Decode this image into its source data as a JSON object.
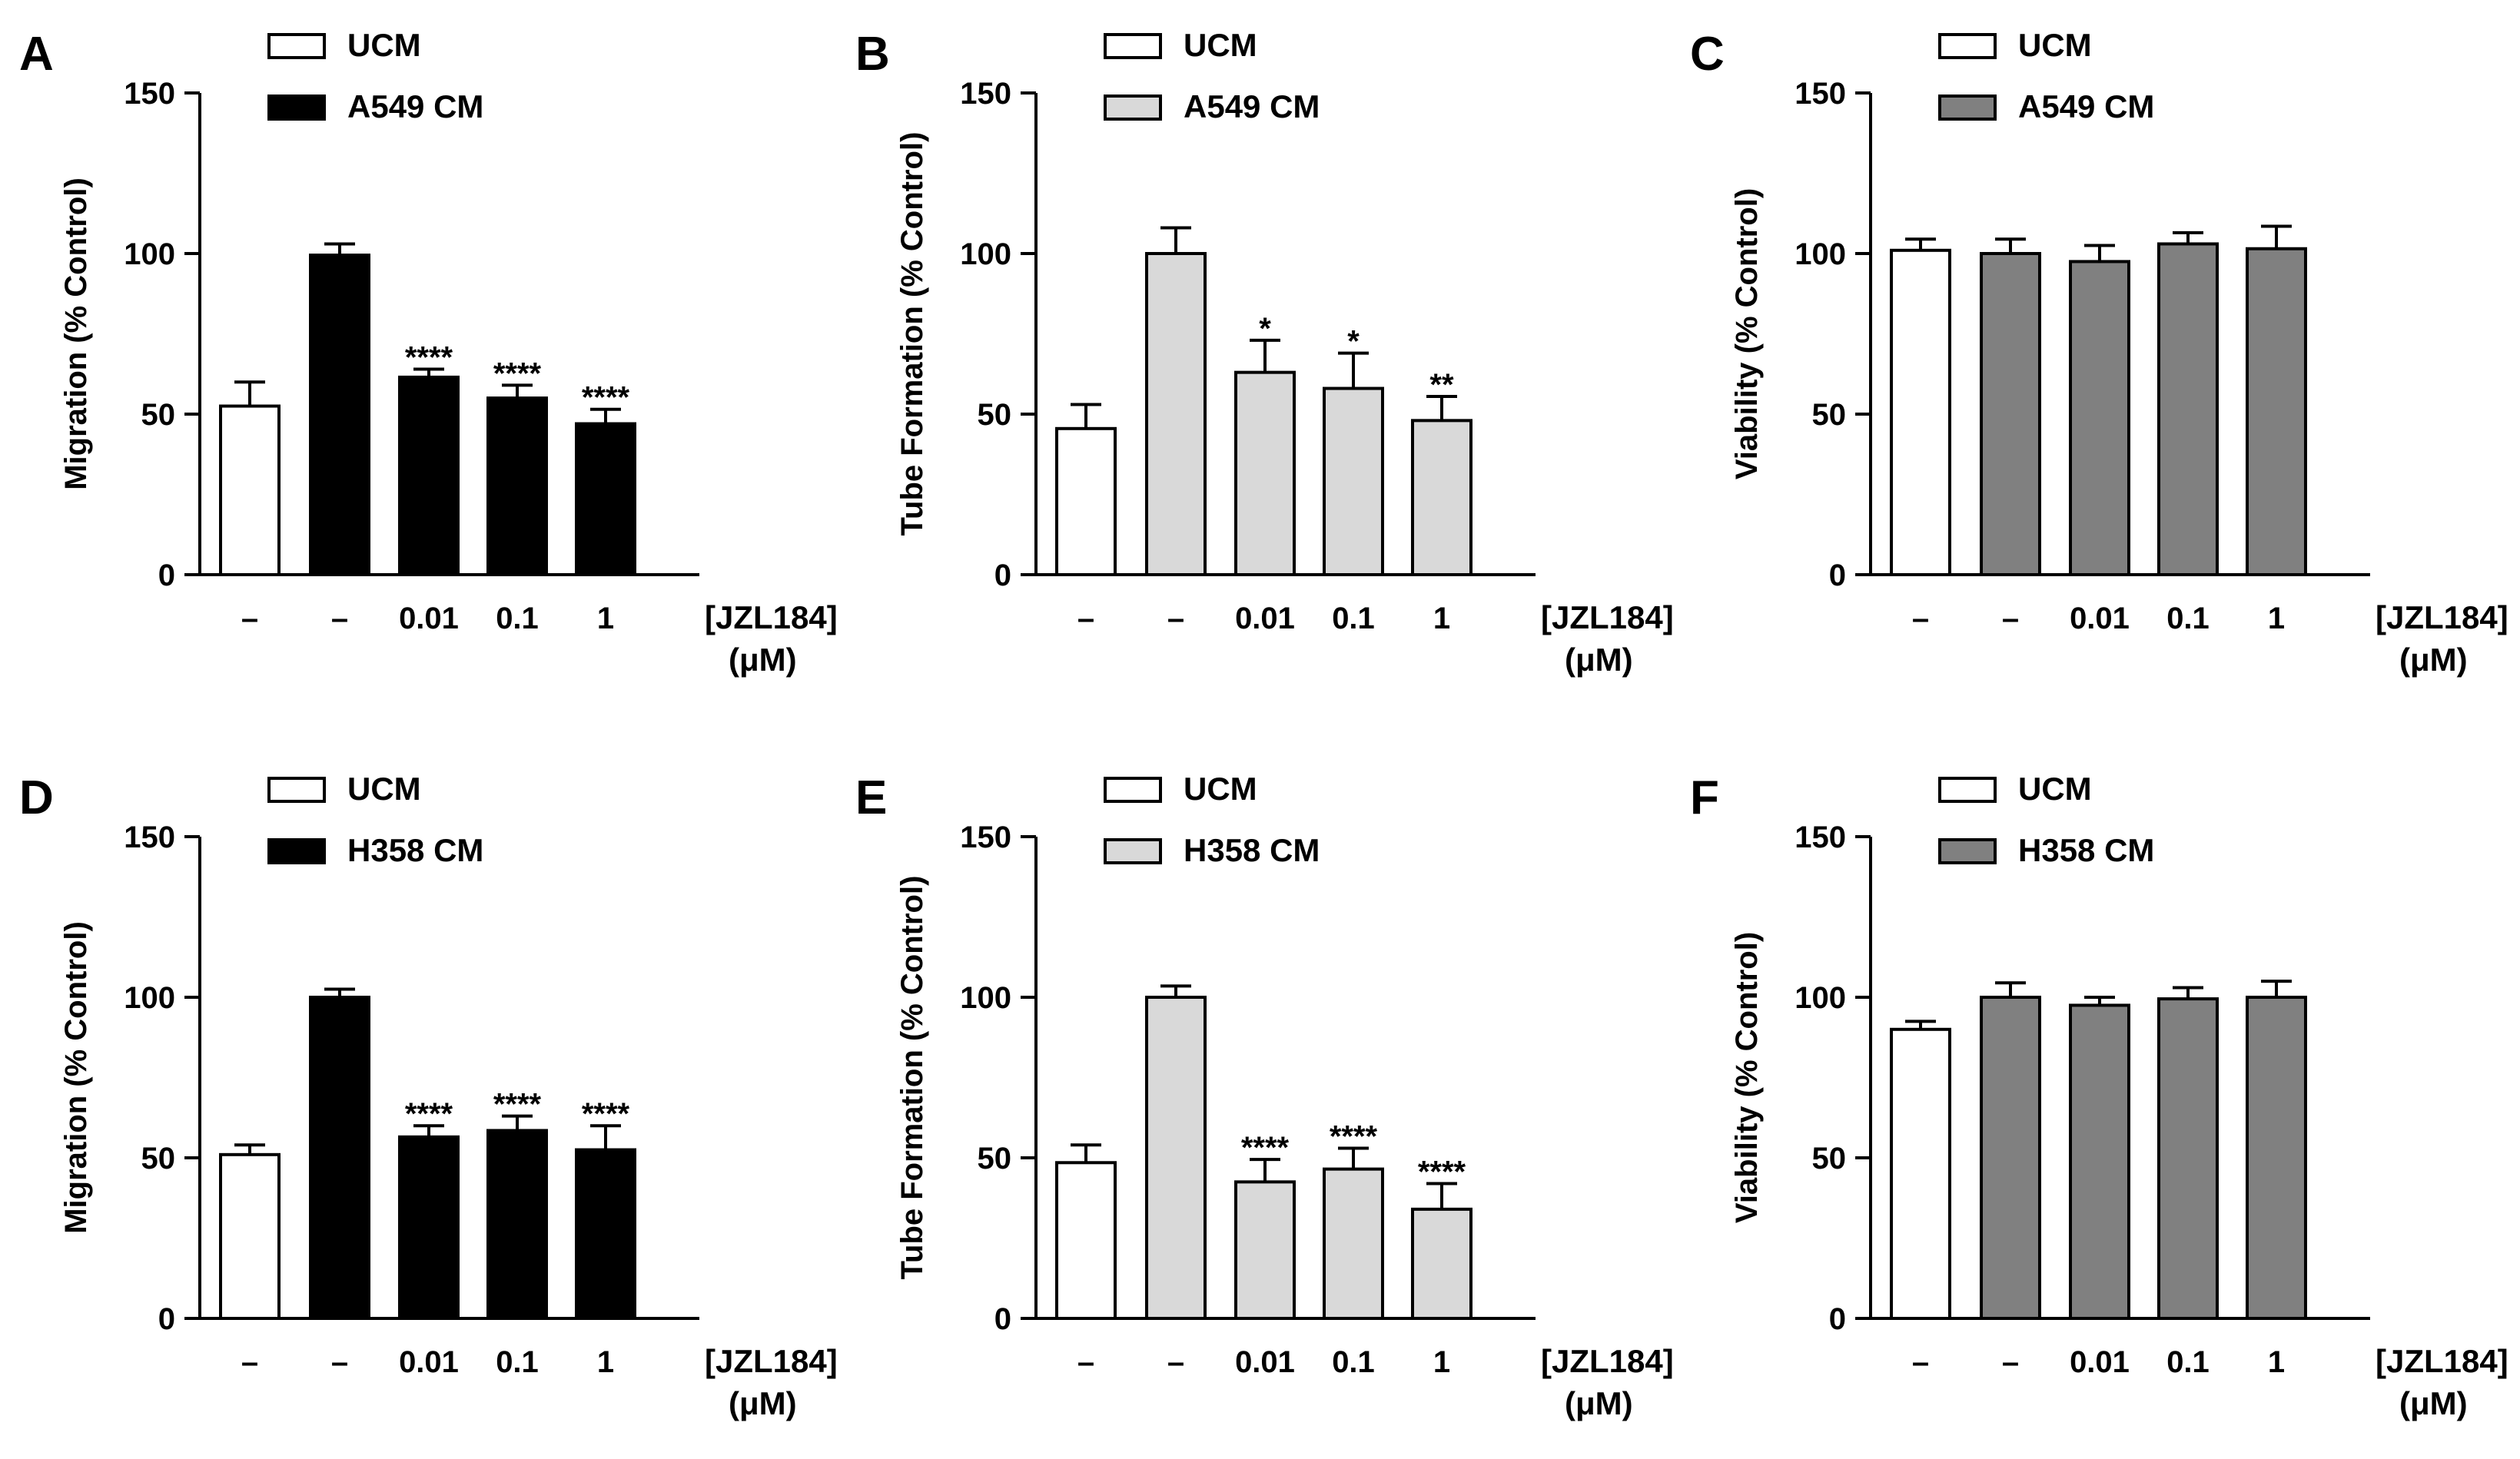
{
  "figure": {
    "group_labels": [
      "–",
      "–",
      "0.01",
      "0.1",
      "1"
    ],
    "x_axis_label_line1": "[JZL184]",
    "x_axis_label_line2": "(μM)"
  },
  "colors": {
    "white_fill": "#ffffff",
    "black_fill": "#000000",
    "light_gray_fill": "#d9d9d9",
    "dark_gray_fill": "#808080"
  },
  "chart_data": [
    {
      "panel": "A",
      "type": "bar",
      "ylabel": "Migration (% Control)",
      "ylim": [
        0,
        150
      ],
      "yticks": [
        0,
        50,
        100,
        150
      ],
      "categories": [
        "–",
        "–",
        "0.01",
        "0.1",
        "1"
      ],
      "xlabel": "[JZL184] (μM)",
      "legend": [
        {
          "label": "UCM",
          "color": "#ffffff"
        },
        {
          "label": "A549 CM",
          "color": "#000000"
        }
      ],
      "values": [
        52.5,
        99.5,
        61.5,
        55,
        47
      ],
      "errors": [
        7.5,
        3.5,
        2.5,
        4,
        4.5
      ],
      "significance": [
        "",
        "",
        "****",
        "****",
        "****"
      ]
    },
    {
      "panel": "B",
      "type": "bar",
      "ylabel": "Tube Formation (% Control)",
      "ylim": [
        0,
        150
      ],
      "yticks": [
        0,
        50,
        100,
        150
      ],
      "categories": [
        "–",
        "–",
        "0.01",
        "0.1",
        "1"
      ],
      "xlabel": "[JZL184] (μM)",
      "legend": [
        {
          "label": "UCM",
          "color": "#ffffff"
        },
        {
          "label": "A549 CM",
          "color": "#d9d9d9"
        }
      ],
      "values": [
        45.5,
        100,
        63,
        58,
        48
      ],
      "errors": [
        7.5,
        8,
        10,
        11,
        7.5
      ],
      "significance": [
        "",
        "",
        "*",
        "*",
        "**"
      ]
    },
    {
      "panel": "C",
      "type": "bar",
      "ylabel": "Viability (% Control)",
      "ylim": [
        0,
        150
      ],
      "yticks": [
        0,
        50,
        100,
        150
      ],
      "categories": [
        "–",
        "–",
        "0.01",
        "0.1",
        "1"
      ],
      "xlabel": "[JZL184] (μM)",
      "legend": [
        {
          "label": "UCM",
          "color": "#ffffff"
        },
        {
          "label": "A549 CM",
          "color": "#808080"
        }
      ],
      "values": [
        101,
        100,
        97.5,
        103,
        101.5
      ],
      "errors": [
        3.5,
        4.5,
        5,
        3.5,
        7
      ],
      "significance": [
        "",
        "",
        "",
        "",
        ""
      ]
    },
    {
      "panel": "D",
      "type": "bar",
      "ylabel": "Migration (% Control)",
      "ylim": [
        0,
        150
      ],
      "yticks": [
        0,
        50,
        100,
        150
      ],
      "categories": [
        "–",
        "–",
        "0.01",
        "0.1",
        "1"
      ],
      "xlabel": "[JZL184] (μM)",
      "legend": [
        {
          "label": "UCM",
          "color": "#ffffff"
        },
        {
          "label": "H358 CM",
          "color": "#000000"
        }
      ],
      "values": [
        51,
        100,
        56.5,
        58.5,
        52.5
      ],
      "errors": [
        3,
        2.5,
        3.5,
        4.5,
        7.5
      ],
      "significance": [
        "",
        "",
        "****",
        "****",
        "****"
      ]
    },
    {
      "panel": "E",
      "type": "bar",
      "ylabel": "Tube Formation (% Control)",
      "ylim": [
        0,
        150
      ],
      "yticks": [
        0,
        50,
        100,
        150
      ],
      "categories": [
        "–",
        "–",
        "0.01",
        "0.1",
        "1"
      ],
      "xlabel": "[JZL184] (μM)",
      "legend": [
        {
          "label": "UCM",
          "color": "#ffffff"
        },
        {
          "label": "H358 CM",
          "color": "#d9d9d9"
        }
      ],
      "values": [
        48.5,
        100,
        42.5,
        46.5,
        34
      ],
      "errors": [
        5.5,
        3.5,
        7,
        6.5,
        8
      ],
      "significance": [
        "",
        "",
        "****",
        "****",
        "****"
      ]
    },
    {
      "panel": "F",
      "type": "bar",
      "ylabel": "Viability (% Control)",
      "ylim": [
        0,
        150
      ],
      "yticks": [
        0,
        50,
        100,
        150
      ],
      "categories": [
        "–",
        "–",
        "0.01",
        "0.1",
        "1"
      ],
      "xlabel": "[JZL184] (μM)",
      "legend": [
        {
          "label": "UCM",
          "color": "#ffffff"
        },
        {
          "label": "H358 CM",
          "color": "#808080"
        }
      ],
      "values": [
        90,
        100,
        97.5,
        99.5,
        100
      ],
      "errors": [
        2.5,
        4.5,
        2.5,
        3.5,
        5
      ],
      "significance": [
        "",
        "",
        "",
        "",
        ""
      ]
    }
  ]
}
